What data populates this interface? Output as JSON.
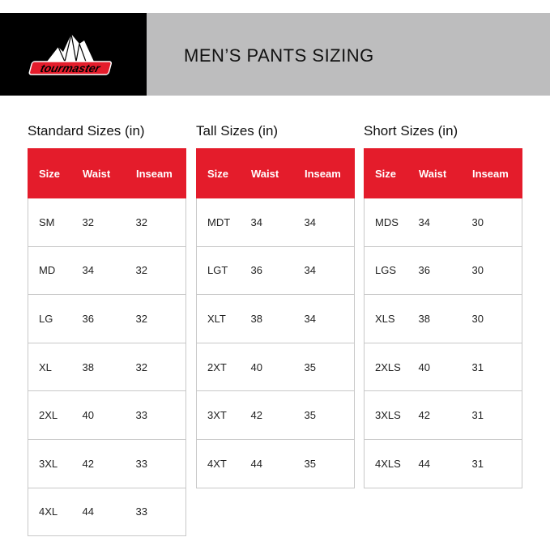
{
  "header": {
    "logo_text": "tourmaster",
    "title": "MEN’S PANTS SIZING",
    "colors": {
      "logo_bg": "#000000",
      "title_bg": "#bdbdbe",
      "accent": "#e41c2b"
    }
  },
  "tables": [
    {
      "title": "Standard Sizes (in)",
      "columns": [
        "Size",
        "Waist",
        "Inseam"
      ],
      "rows": [
        [
          "SM",
          "32",
          "32"
        ],
        [
          "MD",
          "34",
          "32"
        ],
        [
          "LG",
          "36",
          "32"
        ],
        [
          "XL",
          "38",
          "32"
        ],
        [
          "2XL",
          "40",
          "33"
        ],
        [
          "3XL",
          "42",
          "33"
        ],
        [
          "4XL",
          "44",
          "33"
        ]
      ]
    },
    {
      "title": "Tall Sizes (in)",
      "columns": [
        "Size",
        "Waist",
        "Inseam"
      ],
      "rows": [
        [
          "MDT",
          "34",
          "34"
        ],
        [
          "LGT",
          "36",
          "34"
        ],
        [
          "XLT",
          "38",
          "34"
        ],
        [
          "2XT",
          "40",
          "35"
        ],
        [
          "3XT",
          "42",
          "35"
        ],
        [
          "4XT",
          "44",
          "35"
        ]
      ]
    },
    {
      "title": "Short Sizes (in)",
      "columns": [
        "Size",
        "Waist",
        "Inseam"
      ],
      "rows": [
        [
          "MDS",
          "34",
          "30"
        ],
        [
          "LGS",
          "36",
          "30"
        ],
        [
          "XLS",
          "38",
          "30"
        ],
        [
          "2XLS",
          "40",
          "31"
        ],
        [
          "3XLS",
          "42",
          "31"
        ],
        [
          "4XLS",
          "44",
          "31"
        ]
      ]
    }
  ]
}
